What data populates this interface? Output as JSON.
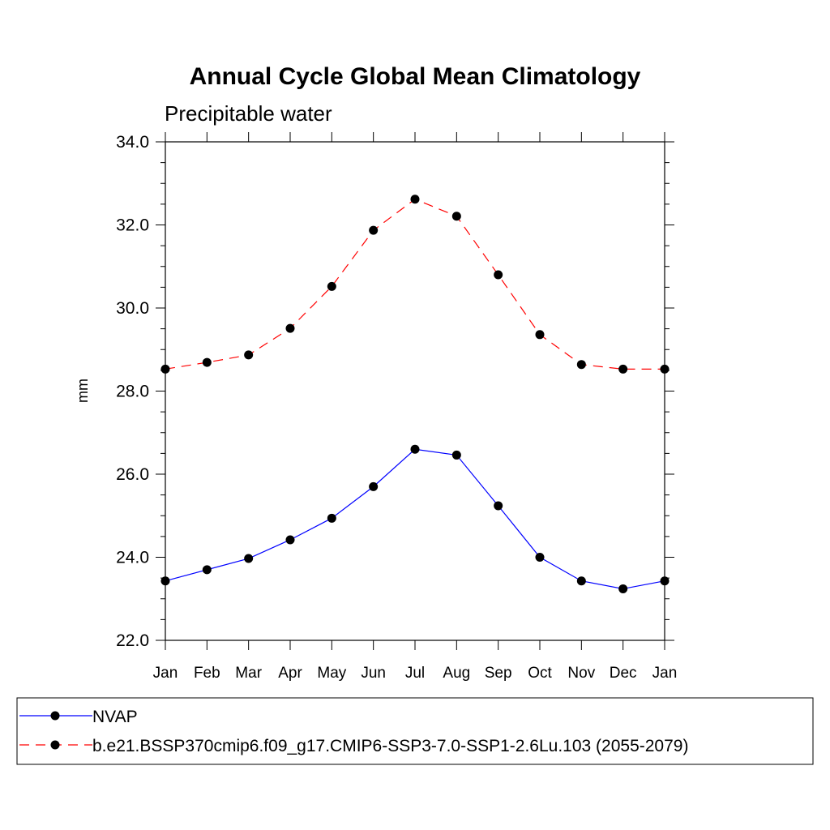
{
  "chart_data": {
    "type": "line",
    "title": "Annual Cycle Global Mean Climatology",
    "subtitle": "Precipitable water",
    "xlabel": "",
    "ylabel": "mm",
    "categories": [
      "Jan",
      "Feb",
      "Mar",
      "Apr",
      "May",
      "Jun",
      "Jul",
      "Aug",
      "Sep",
      "Oct",
      "Nov",
      "Dec",
      "Jan"
    ],
    "ylim": [
      22.0,
      34.0
    ],
    "yticks": [
      "22.0",
      "24.0",
      "26.0",
      "28.0",
      "30.0",
      "32.0",
      "34.0"
    ],
    "grid": false,
    "legend_position": "bottom",
    "series": [
      {
        "name": "NVAP",
        "color": "#0000ff",
        "line_style": "solid",
        "marker": "filled-circle",
        "values": [
          23.43,
          23.7,
          23.97,
          24.42,
          24.94,
          25.7,
          26.6,
          26.46,
          25.24,
          24.0,
          23.43,
          23.24,
          23.43
        ]
      },
      {
        "name": "b.e21.BSSP370cmip6.f09_g17.CMIP6-SSP3-7.0-SSP1-2.6Lu.103 (2055-2079)",
        "color": "#ff0000",
        "line_style": "dashed",
        "marker": "filled-circle",
        "values": [
          28.53,
          28.69,
          28.87,
          29.51,
          30.52,
          31.87,
          32.62,
          32.21,
          30.8,
          29.36,
          28.64,
          28.53,
          28.53
        ]
      }
    ]
  }
}
